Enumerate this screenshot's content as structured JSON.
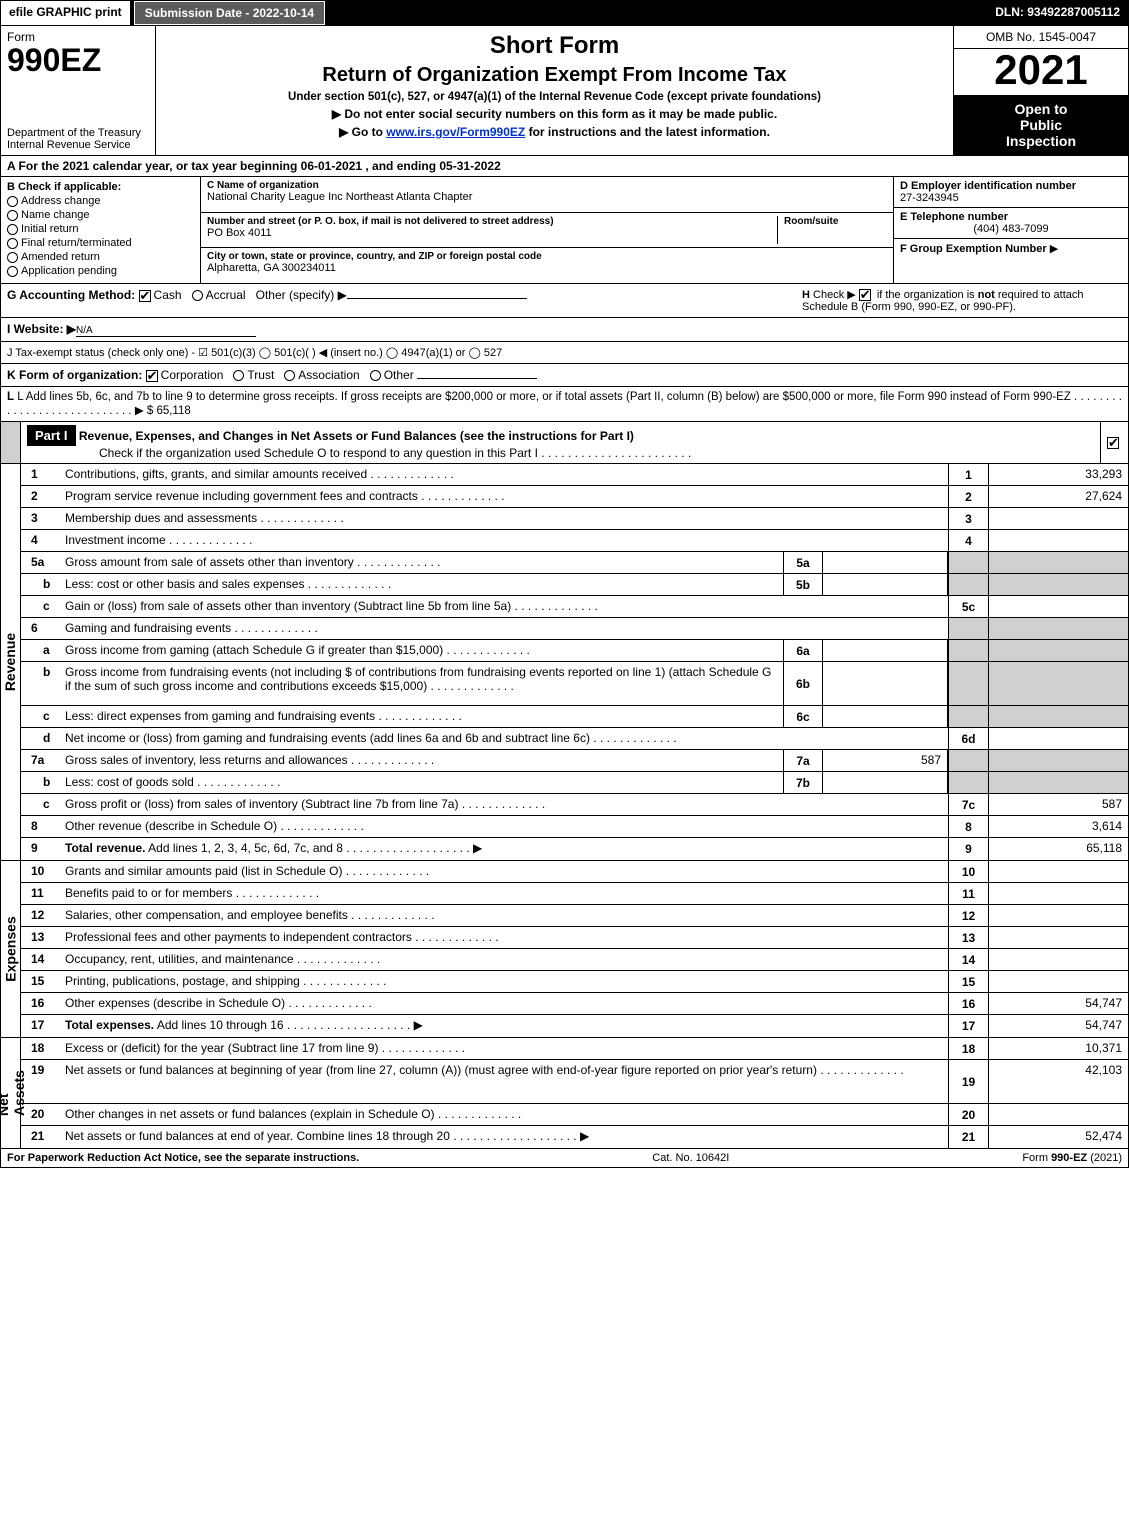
{
  "topbar": {
    "efile": "efile GRAPHIC print",
    "subdate": "Submission Date - 2022-10-14",
    "dln": "DLN: 93492287005112"
  },
  "header": {
    "form_label": "Form",
    "form_number": "990EZ",
    "dept": "Department of the Treasury\nInternal Revenue Service",
    "short_form": "Short Form",
    "title": "Return of Organization Exempt From Income Tax",
    "section": "Under section 501(c), 527, or 4947(a)(1) of the Internal Revenue Code (except private foundations)",
    "warn_ssn": "Do not enter social security numbers on this form as it may be made public.",
    "warn_goto_pre": "Go to ",
    "warn_goto_link": "www.irs.gov/Form990EZ",
    "warn_goto_post": " for instructions and the latest information.",
    "omb": "OMB No. 1545-0047",
    "year": "2021",
    "inspection": "Open to\nPublic\nInspection"
  },
  "secA": "A  For the 2021 calendar year, or tax year beginning 06-01-2021 , and ending 05-31-2022",
  "secB": {
    "title": "B  Check if applicable:",
    "items": [
      "Address change",
      "Name change",
      "Initial return",
      "Final return/terminated",
      "Amended return",
      "Application pending"
    ]
  },
  "secC": {
    "c_label": "C Name of organization",
    "c_value": "National Charity League Inc Northeast Atlanta Chapter",
    "addr_label": "Number and street (or P. O. box, if mail is not delivered to street address)",
    "addr_value": "PO Box 4011",
    "room_label": "Room/suite",
    "city_label": "City or town, state or province, country, and ZIP or foreign postal code",
    "city_value": "Alpharetta, GA  300234011"
  },
  "secD": {
    "label": "D Employer identification number",
    "value": "27-3243945"
  },
  "secE": {
    "label": "E Telephone number",
    "value": "(404) 483-7099"
  },
  "secF": {
    "label": "F Group Exemption Number",
    "arrow": "▶"
  },
  "secG": {
    "label": "G Accounting Method:",
    "cash": "Cash",
    "accrual": "Accrual",
    "other": "Other (specify) ▶"
  },
  "secH": {
    "text": "H  Check ▶ ☐ if the organization is not required to attach Schedule B (Form 990, 990-EZ, or 990-PF)."
  },
  "secI": {
    "label": "I Website: ▶",
    "value": "N/A"
  },
  "secJ": "J Tax-exempt status (check only one) - ☑ 501(c)(3)  ◯ 501(c)(  ) ◀ (insert no.)  ◯ 4947(a)(1) or  ◯ 527",
  "secK": {
    "label": "K Form of organization:",
    "corp": "Corporation",
    "trust": "Trust",
    "assoc": "Association",
    "other": "Other"
  },
  "secL": {
    "text": "L Add lines 5b, 6c, and 7b to line 9 to determine gross receipts. If gross receipts are $200,000 or more, or if total assets (Part II, column (B) below) are $500,000 or more, file Form 990 instead of Form 990-EZ",
    "amount": "▶ $ 65,118"
  },
  "part1": {
    "tag": "Part I",
    "title": "Revenue, Expenses, and Changes in Net Assets or Fund Balances (see the instructions for Part I)",
    "sub": "Check if the organization used Schedule O to respond to any question in this Part I"
  },
  "vtabs": {
    "revenue": "Revenue",
    "expenses": "Expenses",
    "netassets": "Net Assets"
  },
  "revenue_lines": [
    {
      "n": "1",
      "d": "Contributions, gifts, grants, and similar amounts received",
      "rn": "1",
      "rv": "33,293"
    },
    {
      "n": "2",
      "d": "Program service revenue including government fees and contracts",
      "rn": "2",
      "rv": "27,624"
    },
    {
      "n": "3",
      "d": "Membership dues and assessments",
      "rn": "3",
      "rv": ""
    },
    {
      "n": "4",
      "d": "Investment income",
      "rn": "4",
      "rv": ""
    },
    {
      "n": "5a",
      "d": "Gross amount from sale of assets other than inventory",
      "mn": "5a",
      "mv": "",
      "rn": "",
      "rv": "",
      "grey": true
    },
    {
      "n": "b",
      "sub": true,
      "d": "Less: cost or other basis and sales expenses",
      "mn": "5b",
      "mv": "",
      "rn": "",
      "rv": "",
      "grey": true
    },
    {
      "n": "c",
      "sub": true,
      "d": "Gain or (loss) from sale of assets other than inventory (Subtract line 5b from line 5a)",
      "rn": "5c",
      "rv": ""
    },
    {
      "n": "6",
      "d": "Gaming and fundraising events",
      "rn": "",
      "rv": "",
      "grey": true,
      "nobordermid": true
    },
    {
      "n": "a",
      "sub": true,
      "d": "Gross income from gaming (attach Schedule G if greater than $15,000)",
      "mn": "6a",
      "mv": "",
      "rn": "",
      "rv": "",
      "grey": true
    },
    {
      "n": "b",
      "sub": true,
      "d": "Gross income from fundraising events (not including $                    of contributions from fundraising events reported on line 1) (attach Schedule G if the sum of such gross income and contributions exceeds $15,000)",
      "mn": "6b",
      "mv": "",
      "rn": "",
      "rv": "",
      "grey": true,
      "tall": true
    },
    {
      "n": "c",
      "sub": true,
      "d": "Less: direct expenses from gaming and fundraising events",
      "mn": "6c",
      "mv": "",
      "rn": "",
      "rv": "",
      "grey": true
    },
    {
      "n": "d",
      "sub": true,
      "d": "Net income or (loss) from gaming and fundraising events (add lines 6a and 6b and subtract line 6c)",
      "rn": "6d",
      "rv": ""
    },
    {
      "n": "7a",
      "d": "Gross sales of inventory, less returns and allowances",
      "mn": "7a",
      "mv": "587",
      "rn": "",
      "rv": "",
      "grey": true
    },
    {
      "n": "b",
      "sub": true,
      "d": "Less: cost of goods sold",
      "mn": "7b",
      "mv": "",
      "rn": "",
      "rv": "",
      "grey": true
    },
    {
      "n": "c",
      "sub": true,
      "d": "Gross profit or (loss) from sales of inventory (Subtract line 7b from line 7a)",
      "rn": "7c",
      "rv": "587"
    },
    {
      "n": "8",
      "d": "Other revenue (describe in Schedule O)",
      "rn": "8",
      "rv": "3,614"
    },
    {
      "n": "9",
      "d": "Total revenue. Add lines 1, 2, 3, 4, 5c, 6d, 7c, and 8",
      "rn": "9",
      "rv": "65,118",
      "bold": true,
      "arrow": true
    }
  ],
  "expense_lines": [
    {
      "n": "10",
      "d": "Grants and similar amounts paid (list in Schedule O)",
      "rn": "10",
      "rv": ""
    },
    {
      "n": "11",
      "d": "Benefits paid to or for members",
      "rn": "11",
      "rv": ""
    },
    {
      "n": "12",
      "d": "Salaries, other compensation, and employee benefits",
      "rn": "12",
      "rv": ""
    },
    {
      "n": "13",
      "d": "Professional fees and other payments to independent contractors",
      "rn": "13",
      "rv": ""
    },
    {
      "n": "14",
      "d": "Occupancy, rent, utilities, and maintenance",
      "rn": "14",
      "rv": ""
    },
    {
      "n": "15",
      "d": "Printing, publications, postage, and shipping",
      "rn": "15",
      "rv": ""
    },
    {
      "n": "16",
      "d": "Other expenses (describe in Schedule O)",
      "rn": "16",
      "rv": "54,747"
    },
    {
      "n": "17",
      "d": "Total expenses. Add lines 10 through 16",
      "rn": "17",
      "rv": "54,747",
      "bold": true,
      "arrow": true
    }
  ],
  "net_lines": [
    {
      "n": "18",
      "d": "Excess or (deficit) for the year (Subtract line 17 from line 9)",
      "rn": "18",
      "rv": "10,371"
    },
    {
      "n": "19",
      "d": "Net assets or fund balances at beginning of year (from line 27, column (A)) (must agree with end-of-year figure reported on prior year's return)",
      "rn": "19",
      "rv": "42,103",
      "tall": true
    },
    {
      "n": "20",
      "d": "Other changes in net assets or fund balances (explain in Schedule O)",
      "rn": "20",
      "rv": ""
    },
    {
      "n": "21",
      "d": "Net assets or fund balances at end of year. Combine lines 18 through 20",
      "rn": "21",
      "rv": "52,474",
      "arrow": true
    }
  ],
  "footer": {
    "left": "For Paperwork Reduction Act Notice, see the separate instructions.",
    "mid": "Cat. No. 10642I",
    "right": "Form 990-EZ (2021)"
  }
}
